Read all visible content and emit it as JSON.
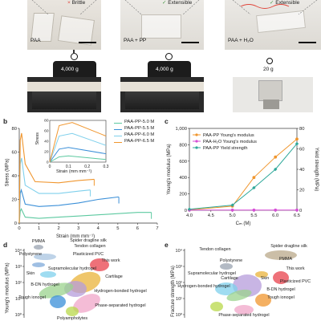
{
  "figure": {
    "panel_letters": {
      "b": "b",
      "c": "c",
      "d": "d",
      "e": "e"
    }
  },
  "top_photos": {
    "labels": [
      "PAA",
      "PAA + PP",
      "PAA + H₂O"
    ],
    "states": [
      {
        "mark": "×",
        "text": "Brittle"
      },
      {
        "mark": "✓",
        "text": "Extensible"
      },
      {
        "mark": "✓",
        "text": "Extensible"
      }
    ],
    "weights": [
      "4,000 g",
      "4,000 g",
      "20 g"
    ],
    "colors": {
      "brittle_mark": "#e0463c",
      "ok_mark": "#4a9a4a"
    }
  },
  "chart_b": {
    "ylabel": "Stress (MPa)",
    "xlabel": "Strain (mm mm⁻¹)",
    "yticks": [
      "0",
      "20",
      "40",
      "60",
      "80"
    ],
    "xticks": [
      "0",
      "1",
      "2",
      "3",
      "4",
      "5",
      "6",
      "7"
    ],
    "inset": {
      "ylabel": "Stress",
      "xlabel": "Strain (mm mm⁻¹)",
      "xticks": [
        "0",
        "0.1",
        "0.2",
        "0.3"
      ],
      "yticks": [
        "0",
        "20",
        "40",
        "60",
        "80"
      ]
    },
    "legend": [
      "PAA-PP-5.0 M",
      "PAA-PP-5.5 M",
      "PAA-PP-6.0 M",
      "PAA-PP-6.5 M"
    ]
  },
  "chart_data": [
    {
      "type": "line",
      "panel": "b",
      "xlabel": "Strain (mm mm⁻¹)",
      "ylabel": "Stress (MPa)",
      "xlim": [
        0,
        7
      ],
      "ylim": [
        0,
        80
      ],
      "series": [
        {
          "name": "PAA-PP-5.0 M",
          "color": "#5cc9a0",
          "points": [
            [
              0,
              0
            ],
            [
              0.05,
              10
            ],
            [
              0.1,
              12
            ],
            [
              0.3,
              5
            ],
            [
              1,
              4
            ],
            [
              2,
              5
            ],
            [
              3,
              6
            ],
            [
              4,
              7
            ],
            [
              5,
              8
            ],
            [
              6,
              9
            ],
            [
              6.7,
              9
            ]
          ]
        },
        {
          "name": "PAA-PP-5.5 M",
          "color": "#3a8fd8",
          "points": [
            [
              0,
              0
            ],
            [
              0.05,
              25
            ],
            [
              0.1,
              28
            ],
            [
              0.3,
              16
            ],
            [
              1,
              14
            ],
            [
              2,
              15
            ],
            [
              3,
              17
            ],
            [
              4,
              20
            ],
            [
              5,
              22
            ],
            [
              5.05,
              22
            ]
          ]
        },
        {
          "name": "PAA-PP-6.0 M",
          "color": "#7fd0ec",
          "points": [
            [
              0,
              0
            ],
            [
              0.05,
              50
            ],
            [
              0.12,
              55
            ],
            [
              0.3,
              32
            ],
            [
              1,
              25
            ],
            [
              2,
              25
            ],
            [
              3,
              27
            ],
            [
              3.6,
              28
            ]
          ]
        },
        {
          "name": "PAA-PP-6.5 M",
          "color": "#f0962e",
          "points": [
            [
              0,
              0
            ],
            [
              0.05,
              70
            ],
            [
              0.12,
              76
            ],
            [
              0.3,
              50
            ],
            [
              0.8,
              35
            ],
            [
              2,
              34
            ],
            [
              3,
              36
            ],
            [
              3.8,
              37
            ]
          ]
        }
      ]
    },
    {
      "type": "line",
      "panel": "c",
      "xlabel": "Cₘ (M)",
      "ylabel": "Young's modulus (MPa)",
      "y2label": "Yield strength (MPa)",
      "xticks": [
        "4.0",
        "4.5",
        "5.0",
        "5.5",
        "6.0",
        "6.5"
      ],
      "yticks": [
        "0",
        "200",
        "400",
        "600",
        "800",
        "1,000"
      ],
      "y2ticks": [
        "0",
        "20",
        "40",
        "60",
        "80"
      ],
      "xlim": [
        4.0,
        6.5
      ],
      "ylim": [
        0,
        1000
      ],
      "y2lim": [
        0,
        80
      ],
      "series": [
        {
          "name": "PAA-PP Young's modulus",
          "color": "#f0962e",
          "axis": "left",
          "x": [
            4.0,
            5.0,
            5.5,
            6.0,
            6.5
          ],
          "values": [
            5,
            50,
            400,
            650,
            870
          ]
        },
        {
          "name": "PAA-H₂O Young's modulus",
          "color": "#d64fd6",
          "axis": "left",
          "x": [
            4.0,
            5.0,
            5.5,
            6.0,
            6.5
          ],
          "values": [
            2,
            2,
            2,
            2,
            2
          ]
        },
        {
          "name": "PAA-PP Yield strength",
          "color": "#2fa89a",
          "axis": "right",
          "x": [
            4.0,
            5.0,
            5.5,
            6.0,
            6.5
          ],
          "values": [
            1,
            5,
            22,
            40,
            65
          ]
        }
      ]
    }
  ],
  "panel_d": {
    "ylabel": "Young's modulus (MPa)",
    "yticks": [
      "10⁴",
      "10³",
      "10²",
      "10¹",
      "10⁰"
    ],
    "labels": [
      "PMMA",
      "Spider dragline silk",
      "Tendon collagen",
      "Polystyrene",
      "Plasticized PVC",
      "This work",
      "Supramolecular hydrogel",
      "Skin",
      "Cartilage",
      "B-DN hydrogel",
      "Hydrogen-bonded hydrogel",
      "Tough ionogel",
      "Phase-separated hydrogel",
      "Polyampholytes"
    ]
  },
  "panel_e": {
    "ylabel": "Fracture strength (MPa)",
    "yticks": [
      "10⁴",
      "10³",
      "10²",
      "10¹",
      "10⁰"
    ],
    "labels": [
      "Spider dragline silk",
      "Tendon collagen",
      "Polystyrene",
      "PMMA",
      "This work",
      "Supramolecular hydrogel",
      "Cartilage",
      "Skin",
      "Plasticized PVC",
      "B-DN hydrogel",
      "Hydrogen-bonded hydrogel",
      "Tough ionogel",
      "Phase-separated hydrogel"
    ]
  }
}
